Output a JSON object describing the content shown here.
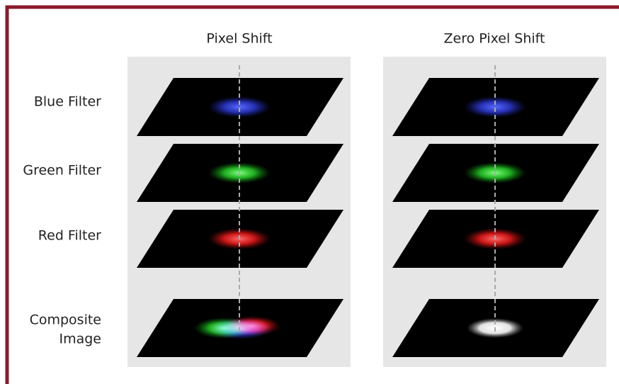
{
  "columns": [
    "Pixel Shift",
    "Zero Pixel Shift"
  ],
  "rows": [
    {
      "lines": [
        "Blue Filter"
      ]
    },
    {
      "lines": [
        "Green Filter"
      ]
    },
    {
      "lines": [
        "Red Filter"
      ]
    },
    {
      "lines": [
        "Composite",
        "Image"
      ]
    }
  ]
}
